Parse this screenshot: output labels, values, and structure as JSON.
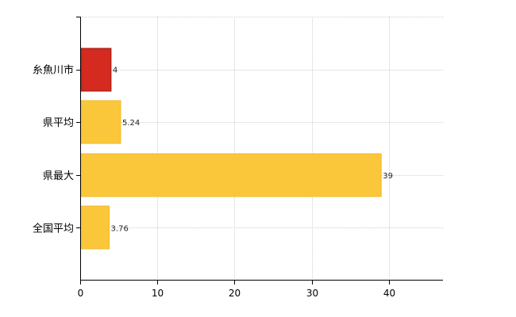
{
  "chart_data": {
    "type": "bar",
    "orientation": "horizontal",
    "categories": [
      "糸魚川市",
      "県平均",
      "県最大",
      "全国平均"
    ],
    "values": [
      4,
      5.24,
      39,
      3.76
    ],
    "value_labels": [
      "4",
      "5.24",
      "39",
      "3.76"
    ],
    "bar_colors": [
      "#d42a1f",
      "#fbc73a",
      "#fbc73a",
      "#fbc73a"
    ],
    "bar_edge_colors": [
      "#9c1a12",
      "#f2b92a",
      "#f2b92a",
      "#f2b92a"
    ],
    "xlim": [
      0,
      47
    ],
    "xticks": [
      0,
      10,
      20,
      30,
      40
    ],
    "xtick_labels": [
      "0",
      "10",
      "20",
      "30",
      "40"
    ],
    "title": "",
    "xlabel": "",
    "ylabel": "",
    "grid": true,
    "legend": "none"
  }
}
